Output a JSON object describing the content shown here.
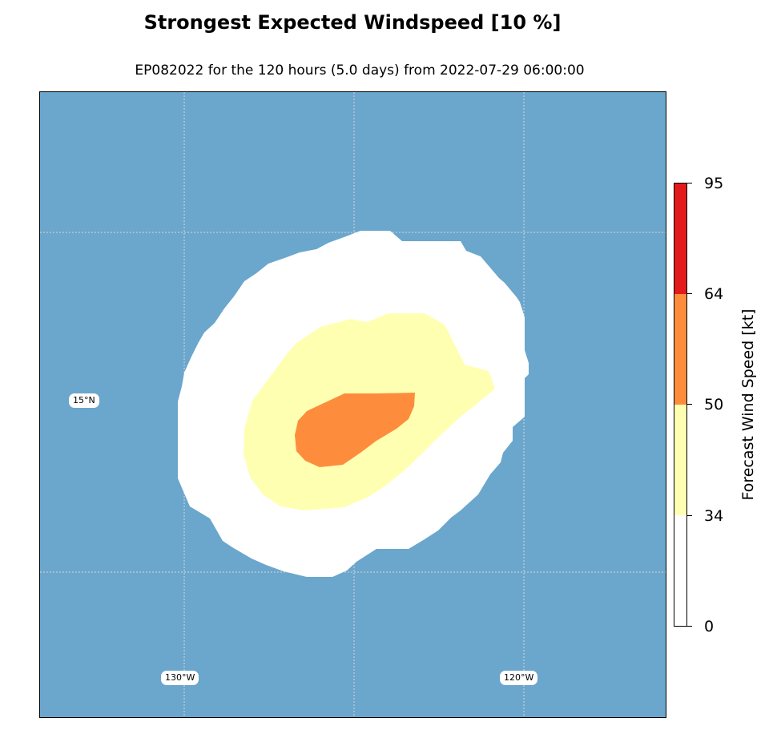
{
  "title": "Strongest Expected Windspeed [10 %]",
  "subtitle": "EP082022 for the 120 hours (5.0 days) from 2022-07-29 06:00:00",
  "map": {
    "latitude_labels": [
      "15°N"
    ],
    "longitude_labels": [
      "130°W",
      "120°W"
    ],
    "colors": {
      "ocean": "#6ba6cc",
      "gridline": "#d8d8d8"
    }
  },
  "wind_zones": [
    {
      "range": "0-34",
      "color": "#ffffff"
    },
    {
      "range": "34-50",
      "color": "#ffffb2"
    },
    {
      "range": "50-64",
      "color": "#fd8d3c"
    }
  ],
  "colorbar": {
    "label": "Forecast Wind Speed [kt]",
    "ticks": [
      "95",
      "64",
      "50",
      "34",
      "0"
    ],
    "segments": [
      {
        "range": "64-95",
        "color": "#e31a1c"
      },
      {
        "range": "50-64",
        "color": "#fd8d3c"
      },
      {
        "range": "34-50",
        "color": "#ffffb2"
      },
      {
        "range": "0-34",
        "color": "#ffffff"
      }
    ]
  }
}
